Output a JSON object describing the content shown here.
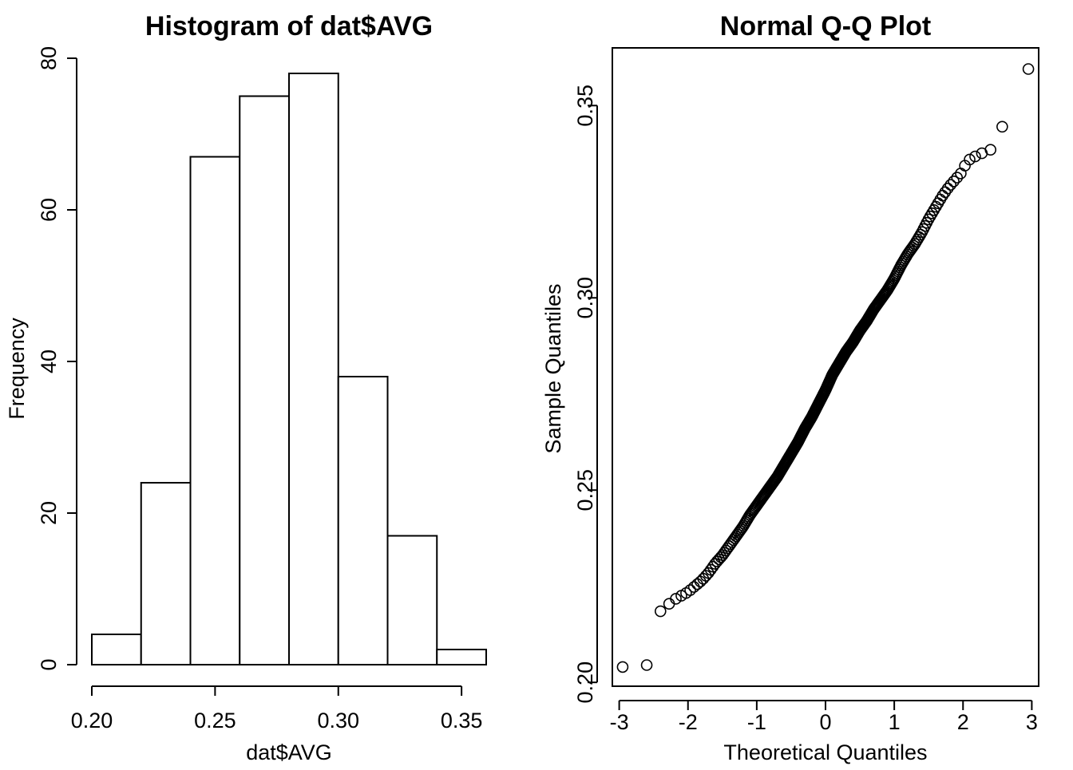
{
  "chart_data": [
    {
      "type": "bar",
      "title": "Histogram of dat$AVG",
      "xlabel": "dat$AVG",
      "ylabel": "Frequency",
      "bins": [
        {
          "x0": 0.2,
          "x1": 0.22,
          "count": 4
        },
        {
          "x0": 0.22,
          "x1": 0.24,
          "count": 24
        },
        {
          "x0": 0.24,
          "x1": 0.26,
          "count": 67
        },
        {
          "x0": 0.26,
          "x1": 0.28,
          "count": 75
        },
        {
          "x0": 0.28,
          "x1": 0.3,
          "count": 78
        },
        {
          "x0": 0.3,
          "x1": 0.32,
          "count": 38
        },
        {
          "x0": 0.32,
          "x1": 0.34,
          "count": 17
        },
        {
          "x0": 0.34,
          "x1": 0.36,
          "count": 2
        }
      ],
      "xlim": [
        0.2,
        0.36
      ],
      "ylim": [
        0,
        80
      ],
      "xticks": [
        0.2,
        0.25,
        0.3,
        0.35
      ],
      "xtick_labels": [
        "0.20",
        "0.25",
        "0.30",
        "0.35"
      ],
      "yticks": [
        0,
        20,
        40,
        60,
        80
      ],
      "ytick_labels": [
        "0",
        "20",
        "40",
        "60",
        "80"
      ],
      "grid": false
    },
    {
      "type": "scatter",
      "title": "Normal Q-Q Plot",
      "xlabel": "Theoretical Quantiles",
      "ylabel": "Sample Quantiles",
      "xlim": [
        -3.1,
        3.1
      ],
      "ylim": [
        0.199,
        0.365
      ],
      "xticks": [
        -3,
        -2,
        -1,
        0,
        1,
        2,
        3
      ],
      "xtick_labels": [
        "-3",
        "-2",
        "-1",
        "0",
        "1",
        "2",
        "3"
      ],
      "yticks": [
        0.2,
        0.25,
        0.3,
        0.35
      ],
      "ytick_labels": [
        "0.20",
        "0.25",
        "0.30",
        "0.35"
      ],
      "grid": false,
      "n": 305,
      "points": [
        [
          -3.1,
          0.204
        ],
        [
          -2.6,
          0.2045
        ],
        [
          -2.4,
          0.2185
        ],
        [
          -2.27,
          0.2205
        ],
        [
          -2.2,
          0.2215
        ],
        [
          -2.1,
          0.2225
        ],
        [
          -2.0,
          0.2235
        ],
        [
          -1.9,
          0.225
        ],
        [
          -1.8,
          0.2265
        ],
        [
          -1.7,
          0.2285
        ],
        [
          -1.6,
          0.231
        ],
        [
          -1.5,
          0.233
        ],
        [
          -1.4,
          0.2355
        ],
        [
          -1.3,
          0.238
        ],
        [
          -1.2,
          0.2405
        ],
        [
          -1.1,
          0.2435
        ],
        [
          -1.0,
          0.246
        ],
        [
          -0.9,
          0.2485
        ],
        [
          -0.8,
          0.251
        ],
        [
          -0.7,
          0.2535
        ],
        [
          -0.6,
          0.2565
        ],
        [
          -0.5,
          0.2595
        ],
        [
          -0.4,
          0.2625
        ],
        [
          -0.3,
          0.266
        ],
        [
          -0.2,
          0.269
        ],
        [
          -0.1,
          0.2725
        ],
        [
          0.0,
          0.276
        ],
        [
          0.1,
          0.28
        ],
        [
          0.2,
          0.283
        ],
        [
          0.3,
          0.286
        ],
        [
          0.4,
          0.2885
        ],
        [
          0.5,
          0.2915
        ],
        [
          0.6,
          0.294
        ],
        [
          0.7,
          0.297
        ],
        [
          0.8,
          0.2995
        ],
        [
          0.9,
          0.302
        ],
        [
          1.0,
          0.305
        ],
        [
          1.1,
          0.3085
        ],
        [
          1.2,
          0.3115
        ],
        [
          1.3,
          0.314
        ],
        [
          1.4,
          0.317
        ],
        [
          1.5,
          0.3205
        ],
        [
          1.6,
          0.3235
        ],
        [
          1.7,
          0.3265
        ],
        [
          1.8,
          0.329
        ],
        [
          1.9,
          0.331
        ],
        [
          2.0,
          0.333
        ],
        [
          2.05,
          0.3355
        ],
        [
          2.2,
          0.337
        ],
        [
          2.3,
          0.3378
        ],
        [
          2.4,
          0.3385
        ],
        [
          2.57,
          0.3445
        ],
        [
          2.95,
          0.3595
        ]
      ]
    }
  ]
}
